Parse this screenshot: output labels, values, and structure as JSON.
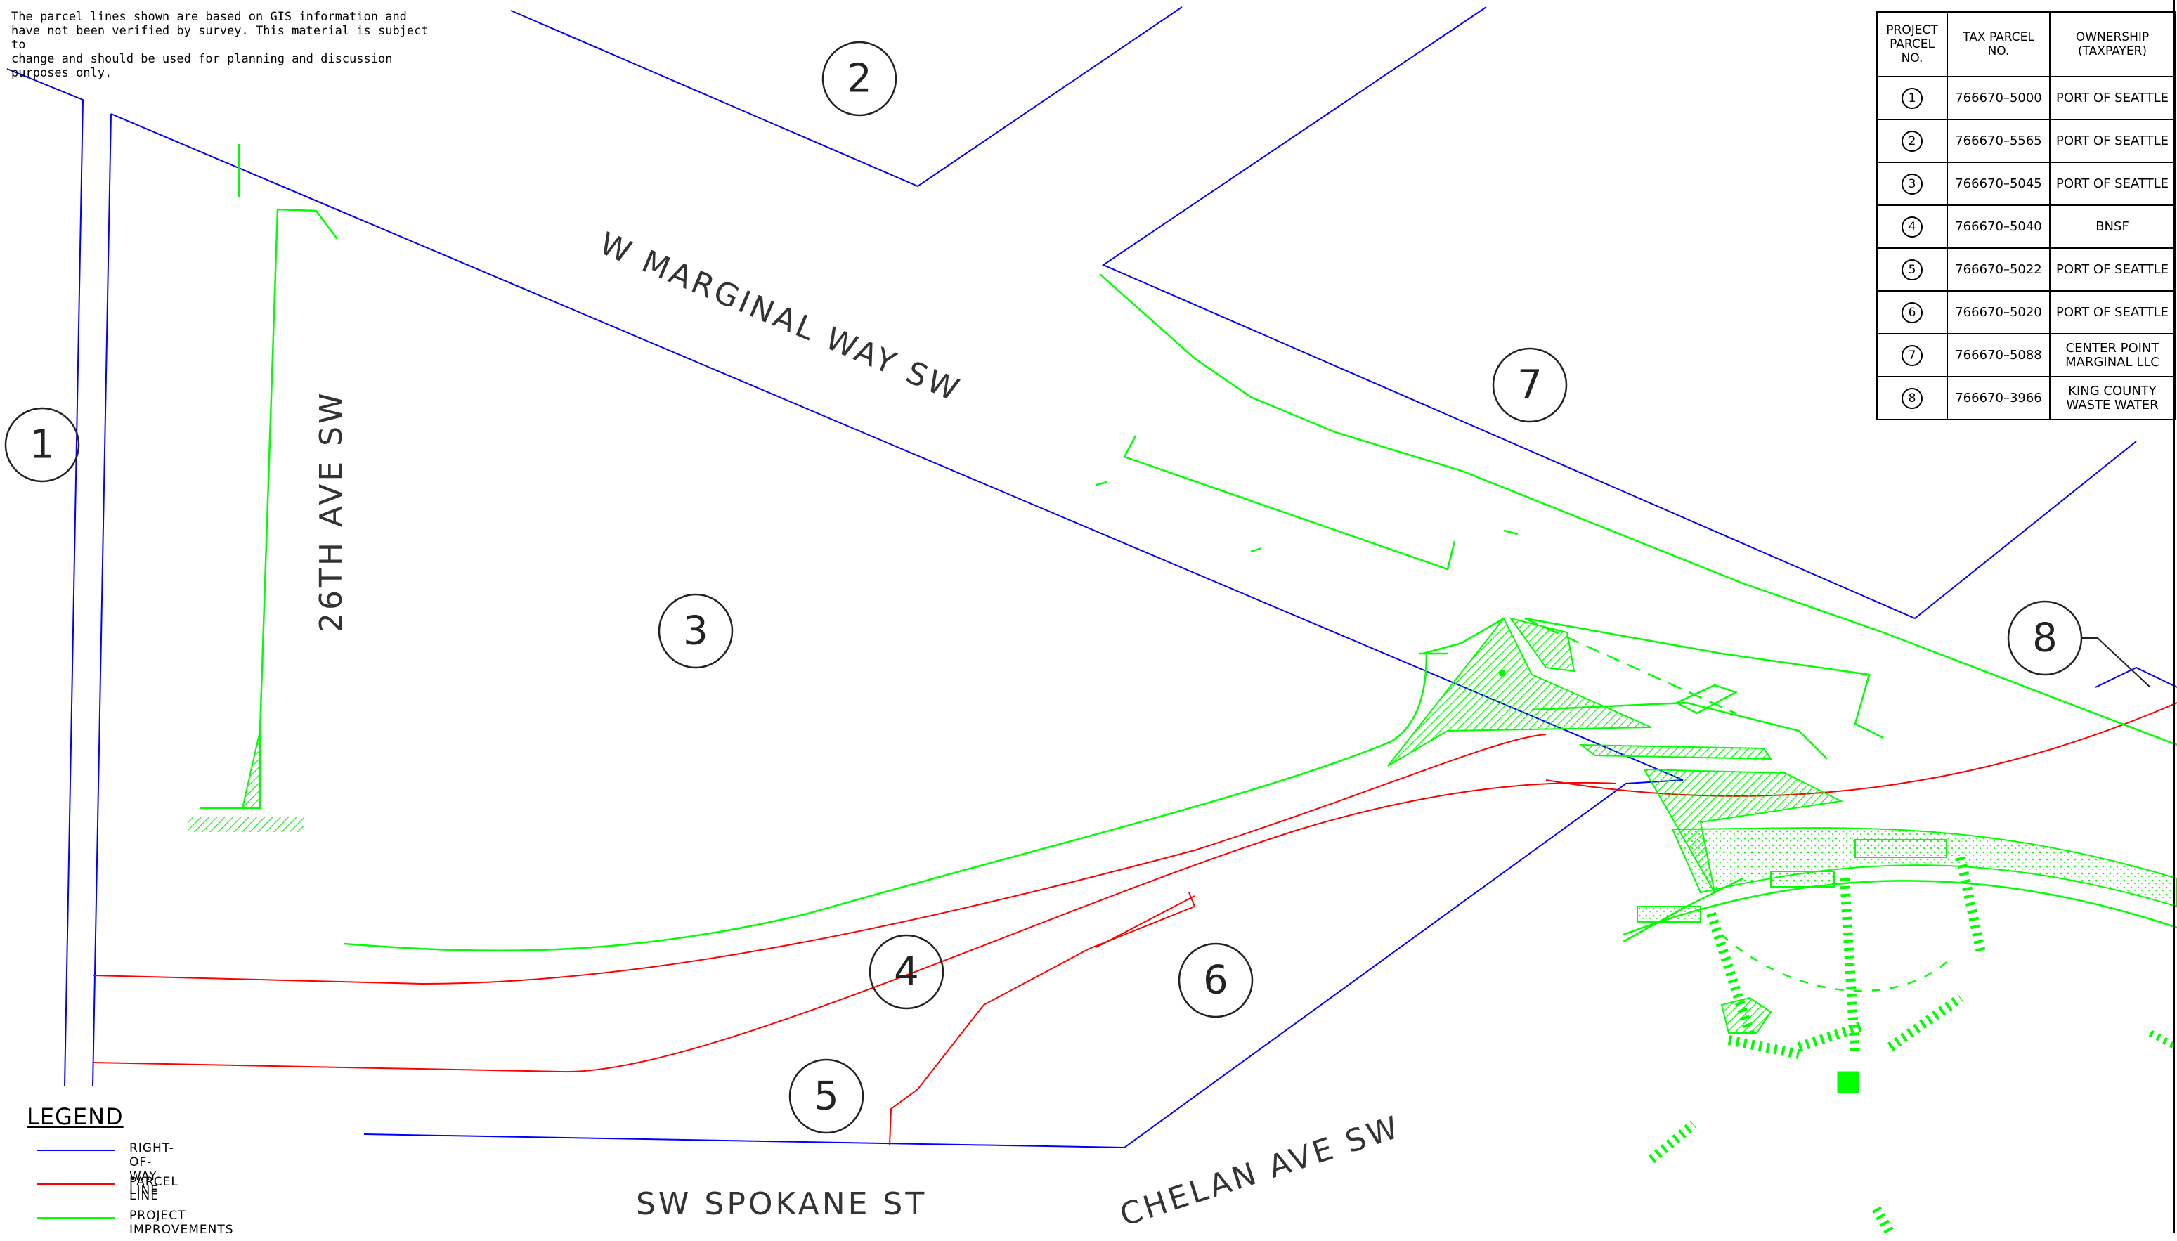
{
  "disclaimer": "The parcel lines shown are based on GIS information and\nhave not been verified by survey. This material is subject to\nchange and should be used for planning and discussion\npurposes only.",
  "streets": {
    "w_marginal": "W MARGINAL WAY SW",
    "ave26": "26TH AVE SW",
    "spokane": "SW SPOKANE ST",
    "chelan": "CHELAN AVE SW"
  },
  "parcel_labels": [
    "1",
    "2",
    "3",
    "4",
    "5",
    "6",
    "7",
    "8"
  ],
  "legend": {
    "title": "LEGEND",
    "items": [
      {
        "label": "RIGHT-OF-WAY LINE",
        "color": "#0000ff"
      },
      {
        "label": "PARCEL LINE",
        "color": "#ff0000"
      },
      {
        "label": "PROJECT IMPROVEMENTS",
        "color": "#00ff00"
      }
    ]
  },
  "table": {
    "headers": {
      "project_parcel": "PROJECT PARCEL NO.",
      "tax_parcel": "TAX PARCEL NO.",
      "ownership": "OWNERSHIP (TAXPAYER)"
    },
    "rows": [
      {
        "no": "1",
        "tax": "766670–5000",
        "owner": "PORT OF SEATTLE"
      },
      {
        "no": "2",
        "tax": "766670–5565",
        "owner": "PORT OF SEATTLE"
      },
      {
        "no": "3",
        "tax": "766670–5045",
        "owner": "PORT OF SEATTLE"
      },
      {
        "no": "4",
        "tax": "766670–5040",
        "owner": "BNSF"
      },
      {
        "no": "5",
        "tax": "766670–5022",
        "owner": "PORT OF SEATTLE"
      },
      {
        "no": "6",
        "tax": "766670–5020",
        "owner": "PORT OF SEATTLE"
      },
      {
        "no": "7",
        "tax": "766670–5088",
        "owner": "CENTER POINT MARGINAL LLC"
      },
      {
        "no": "8",
        "tax": "766670–3966",
        "owner": "KING COUNTY WASTE WATER"
      }
    ]
  },
  "colors": {
    "right_of_way": "#0000ff",
    "parcel_line": "#ff0000",
    "project_improvements": "#00ff00"
  }
}
